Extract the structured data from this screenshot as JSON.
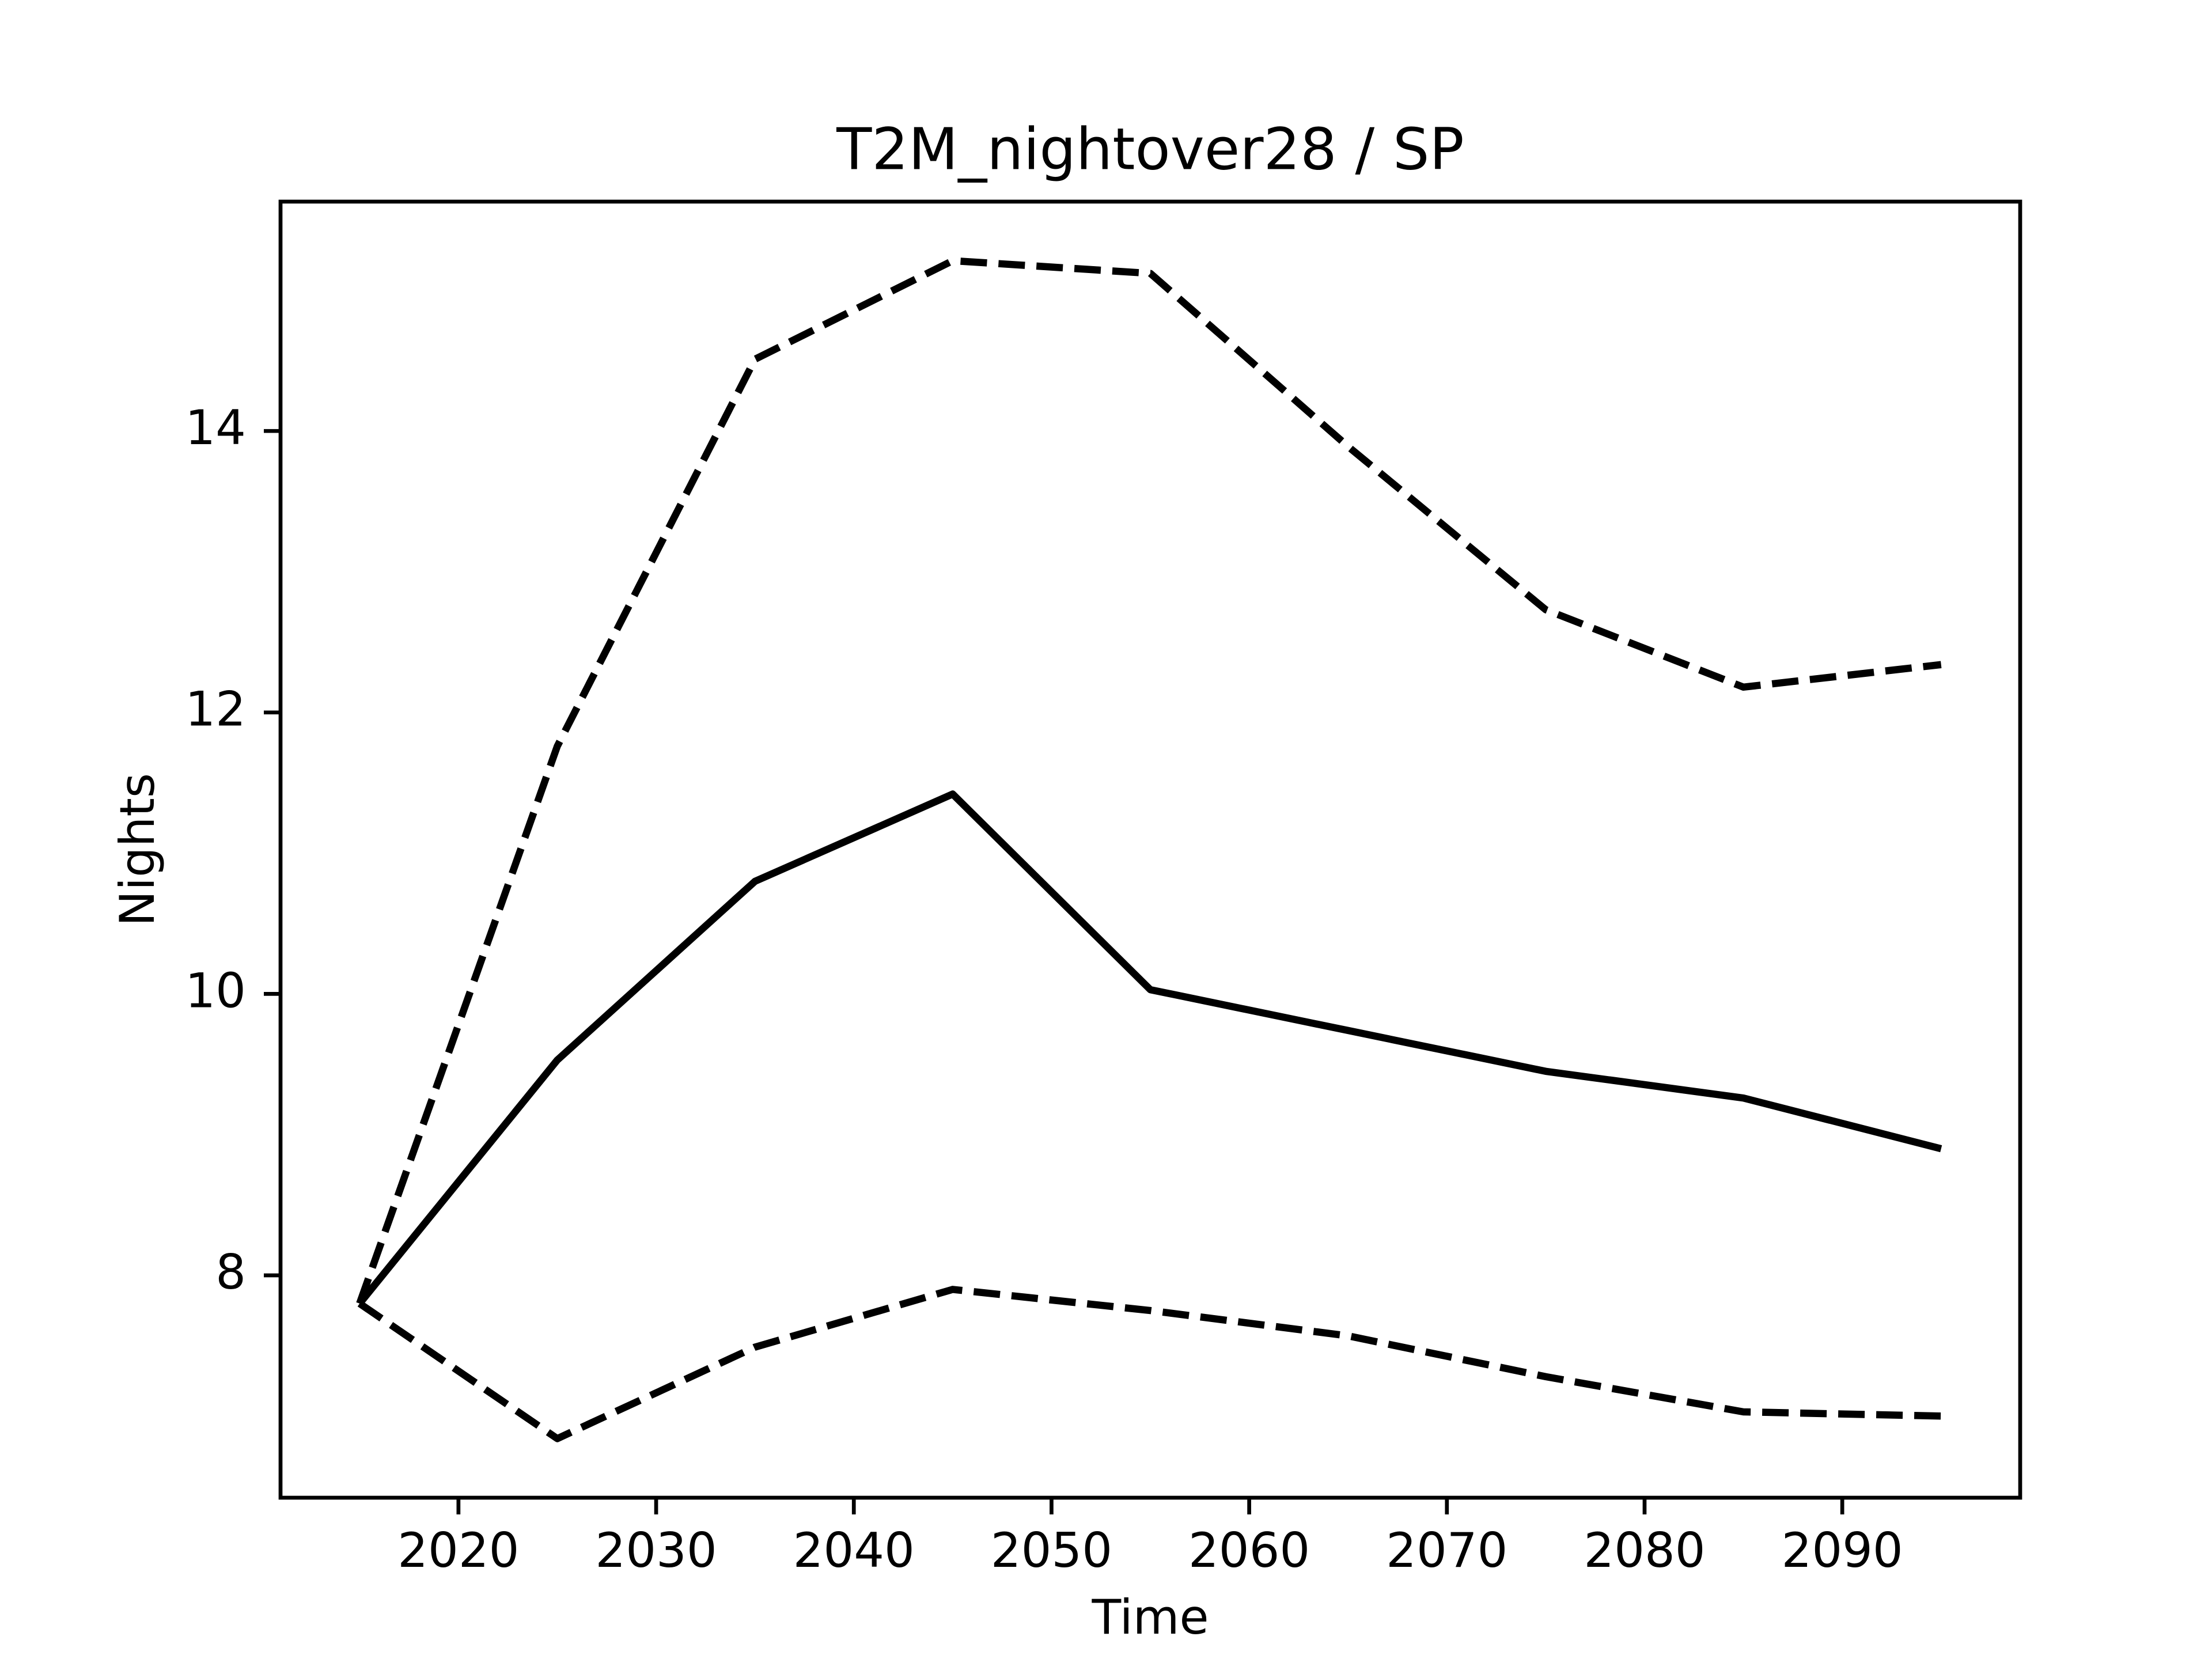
{
  "chart_data": {
    "type": "line",
    "title": "T2M_nightover28 / SP",
    "x_label": "Time",
    "y_label": "Nights",
    "x": [
      2015,
      2025,
      2035,
      2045,
      2055,
      2065,
      2075,
      2085,
      2095
    ],
    "series": [
      {
        "color": "#000000",
        "linestyle": "solid",
        "values": [
          7.8,
          9.53,
          10.8,
          11.42,
          10.03,
          9.74,
          9.45,
          9.26,
          8.9
        ]
      },
      {
        "color": "#000000",
        "linestyle": "dashed",
        "values": [
          7.8,
          11.76,
          14.51,
          15.21,
          15.12,
          13.89,
          12.73,
          12.18,
          12.34
        ]
      },
      {
        "color": "#000000",
        "linestyle": "dashed",
        "values": [
          7.8,
          6.84,
          7.49,
          7.9,
          7.75,
          7.57,
          7.28,
          7.03,
          7.0
        ]
      }
    ],
    "xlim": [
      2011,
      2099
    ],
    "xticks": [
      2020,
      2030,
      2040,
      2050,
      2060,
      2070,
      2080,
      2090
    ],
    "ylim": [
      6.42,
      15.63
    ],
    "yticks": [
      8,
      10,
      12,
      14
    ],
    "grid": false
  }
}
